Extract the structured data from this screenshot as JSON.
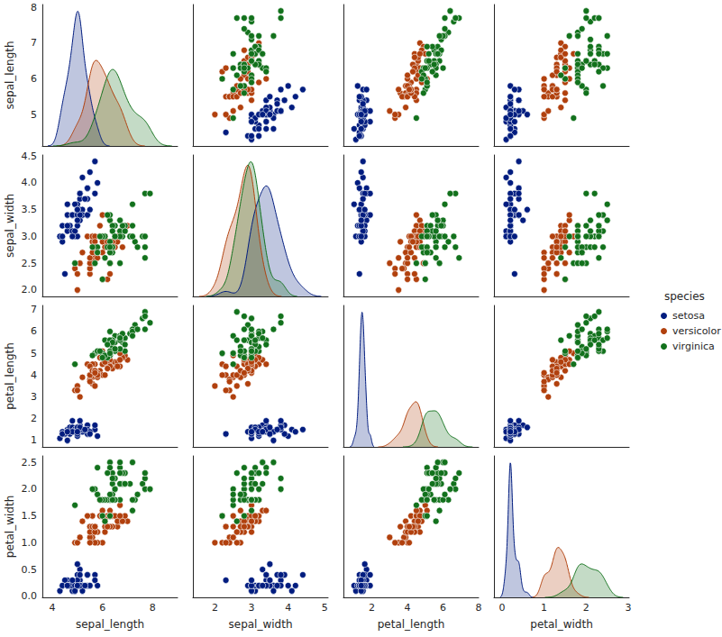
{
  "chart_data": {
    "type": "pairplot",
    "variables": [
      "sepal_length",
      "sepal_width",
      "petal_length",
      "petal_width"
    ],
    "axes": {
      "sepal_length": {
        "xlim": [
          3.6,
          9.0
        ],
        "xticks": [
          4,
          6,
          8
        ],
        "ylim": [
          4.12,
          8.08
        ],
        "yticks": [
          5,
          6,
          7,
          8
        ]
      },
      "sepal_width": {
        "xlim": [
          1.4,
          5.09
        ],
        "xticks": [
          2,
          3,
          4,
          5
        ],
        "ylim": [
          1.88,
          4.52
        ],
        "yticks": [
          {
            "value": 2,
            "label": "2.0"
          },
          2.5,
          {
            "value": 3,
            "label": "3.0"
          },
          3.5,
          {
            "value": 4,
            "label": "4.0"
          },
          4.5
        ]
      },
      "petal_length": {
        "xlim": [
          0.4,
          8.0
        ],
        "xticks": [
          2,
          4,
          6,
          8
        ],
        "ylim": [
          0.705,
          7.195
        ],
        "yticks": [
          1,
          2,
          3,
          4,
          5,
          6,
          7
        ]
      },
      "petal_width": {
        "xlim": [
          -0.19,
          3.02
        ],
        "xticks": [
          0,
          1,
          2,
          3
        ],
        "ylim": [
          -0.02,
          2.62
        ],
        "yticks": [
          {
            "value": 0,
            "label": "0.0"
          },
          0.5,
          {
            "value": 1,
            "label": "1.0"
          },
          1.5,
          {
            "value": 2,
            "label": "2.0"
          },
          2.5
        ]
      }
    },
    "legend": "right",
    "legend_title": "species",
    "marker": "circle",
    "grid": false,
    "series": [
      {
        "name": "setosa",
        "color": "#001c7f",
        "values": [
          [
            5.1,
            3.5,
            1.4,
            0.2
          ],
          [
            4.9,
            3.0,
            1.4,
            0.2
          ],
          [
            4.7,
            3.2,
            1.3,
            0.2
          ],
          [
            4.6,
            3.1,
            1.5,
            0.2
          ],
          [
            5.0,
            3.6,
            1.4,
            0.2
          ],
          [
            5.4,
            3.9,
            1.7,
            0.4
          ],
          [
            4.6,
            3.4,
            1.4,
            0.3
          ],
          [
            5.0,
            3.4,
            1.5,
            0.2
          ],
          [
            4.4,
            2.9,
            1.4,
            0.2
          ],
          [
            4.9,
            3.1,
            1.5,
            0.1
          ],
          [
            5.4,
            3.7,
            1.5,
            0.2
          ],
          [
            4.8,
            3.4,
            1.6,
            0.2
          ],
          [
            4.8,
            3.0,
            1.4,
            0.1
          ],
          [
            4.3,
            3.0,
            1.1,
            0.1
          ],
          [
            5.8,
            4.0,
            1.2,
            0.2
          ],
          [
            5.7,
            4.4,
            1.5,
            0.4
          ],
          [
            5.4,
            3.9,
            1.3,
            0.4
          ],
          [
            5.1,
            3.5,
            1.4,
            0.3
          ],
          [
            5.7,
            3.8,
            1.7,
            0.3
          ],
          [
            5.1,
            3.8,
            1.5,
            0.3
          ],
          [
            5.4,
            3.4,
            1.7,
            0.2
          ],
          [
            5.1,
            3.7,
            1.5,
            0.4
          ],
          [
            4.6,
            3.6,
            1.0,
            0.2
          ],
          [
            5.1,
            3.3,
            1.7,
            0.5
          ],
          [
            4.8,
            3.4,
            1.9,
            0.2
          ],
          [
            5.0,
            3.0,
            1.6,
            0.2
          ],
          [
            5.0,
            3.4,
            1.6,
            0.4
          ],
          [
            5.2,
            3.5,
            1.5,
            0.2
          ],
          [
            5.2,
            3.4,
            1.4,
            0.2
          ],
          [
            4.7,
            3.2,
            1.6,
            0.2
          ],
          [
            4.8,
            3.1,
            1.6,
            0.2
          ],
          [
            5.4,
            3.4,
            1.5,
            0.4
          ],
          [
            5.2,
            4.1,
            1.5,
            0.1
          ],
          [
            5.5,
            4.2,
            1.4,
            0.2
          ],
          [
            4.9,
            3.1,
            1.5,
            0.2
          ],
          [
            5.0,
            3.2,
            1.2,
            0.2
          ],
          [
            5.5,
            3.5,
            1.3,
            0.2
          ],
          [
            4.9,
            3.6,
            1.4,
            0.1
          ],
          [
            4.4,
            3.0,
            1.3,
            0.2
          ],
          [
            5.1,
            3.4,
            1.5,
            0.2
          ],
          [
            5.0,
            3.5,
            1.3,
            0.3
          ],
          [
            4.5,
            2.3,
            1.3,
            0.3
          ],
          [
            4.4,
            3.2,
            1.3,
            0.2
          ],
          [
            5.0,
            3.5,
            1.6,
            0.6
          ],
          [
            5.1,
            3.8,
            1.9,
            0.4
          ],
          [
            4.8,
            3.0,
            1.4,
            0.3
          ],
          [
            5.1,
            3.8,
            1.6,
            0.2
          ],
          [
            4.6,
            3.2,
            1.4,
            0.2
          ],
          [
            5.3,
            3.7,
            1.5,
            0.2
          ],
          [
            5.0,
            3.3,
            1.4,
            0.2
          ]
        ]
      },
      {
        "name": "versicolor",
        "color": "#b1400d",
        "values": [
          [
            7.0,
            3.2,
            4.7,
            1.4
          ],
          [
            6.4,
            3.2,
            4.5,
            1.5
          ],
          [
            6.9,
            3.1,
            4.9,
            1.5
          ],
          [
            5.5,
            2.3,
            4.0,
            1.3
          ],
          [
            6.5,
            2.8,
            4.6,
            1.5
          ],
          [
            5.7,
            2.8,
            4.5,
            1.3
          ],
          [
            6.3,
            3.3,
            4.7,
            1.6
          ],
          [
            4.9,
            2.4,
            3.3,
            1.0
          ],
          [
            6.6,
            2.9,
            4.6,
            1.3
          ],
          [
            5.2,
            2.7,
            3.9,
            1.4
          ],
          [
            5.0,
            2.0,
            3.5,
            1.0
          ],
          [
            5.9,
            3.0,
            4.2,
            1.5
          ],
          [
            6.0,
            2.2,
            4.0,
            1.0
          ],
          [
            6.1,
            2.9,
            4.7,
            1.4
          ],
          [
            5.6,
            2.9,
            3.6,
            1.3
          ],
          [
            6.7,
            3.1,
            4.4,
            1.4
          ],
          [
            5.6,
            3.0,
            4.5,
            1.5
          ],
          [
            5.8,
            2.7,
            4.1,
            1.0
          ],
          [
            6.2,
            2.2,
            4.5,
            1.5
          ],
          [
            5.6,
            2.5,
            3.9,
            1.1
          ],
          [
            5.9,
            3.2,
            4.8,
            1.8
          ],
          [
            6.1,
            2.8,
            4.0,
            1.3
          ],
          [
            6.3,
            2.5,
            4.9,
            1.5
          ],
          [
            6.1,
            2.8,
            4.7,
            1.2
          ],
          [
            6.4,
            2.9,
            4.3,
            1.3
          ],
          [
            6.6,
            3.0,
            4.4,
            1.4
          ],
          [
            6.8,
            2.8,
            4.8,
            1.4
          ],
          [
            6.7,
            3.0,
            5.0,
            1.7
          ],
          [
            6.0,
            2.9,
            4.5,
            1.5
          ],
          [
            5.7,
            2.6,
            3.5,
            1.0
          ],
          [
            5.5,
            2.4,
            3.8,
            1.1
          ],
          [
            5.5,
            2.4,
            3.7,
            1.0
          ],
          [
            5.8,
            2.7,
            3.9,
            1.2
          ],
          [
            6.0,
            2.7,
            5.1,
            1.6
          ],
          [
            5.4,
            3.0,
            4.5,
            1.5
          ],
          [
            6.0,
            3.4,
            4.5,
            1.6
          ],
          [
            6.7,
            3.1,
            4.7,
            1.5
          ],
          [
            6.3,
            2.3,
            4.4,
            1.3
          ],
          [
            5.6,
            3.0,
            4.1,
            1.3
          ],
          [
            5.5,
            2.5,
            4.0,
            1.3
          ],
          [
            5.5,
            2.6,
            4.4,
            1.2
          ],
          [
            6.1,
            3.0,
            4.6,
            1.4
          ],
          [
            5.8,
            2.6,
            4.0,
            1.2
          ],
          [
            5.0,
            2.3,
            3.3,
            1.0
          ],
          [
            5.6,
            2.7,
            4.2,
            1.3
          ],
          [
            5.7,
            3.0,
            4.2,
            1.2
          ],
          [
            5.7,
            2.9,
            4.2,
            1.3
          ],
          [
            6.2,
            2.9,
            4.3,
            1.3
          ],
          [
            5.1,
            2.5,
            3.0,
            1.1
          ],
          [
            5.7,
            2.8,
            4.1,
            1.3
          ]
        ]
      },
      {
        "name": "virginica",
        "color": "#12711c",
        "values": [
          [
            6.3,
            3.3,
            6.0,
            2.5
          ],
          [
            5.8,
            2.7,
            5.1,
            1.9
          ],
          [
            7.1,
            3.0,
            5.9,
            2.1
          ],
          [
            6.3,
            2.9,
            5.6,
            1.8
          ],
          [
            6.5,
            3.0,
            5.8,
            2.2
          ],
          [
            7.6,
            3.0,
            6.6,
            2.1
          ],
          [
            4.9,
            2.5,
            4.5,
            1.7
          ],
          [
            7.3,
            2.9,
            6.3,
            1.8
          ],
          [
            6.7,
            2.5,
            5.8,
            1.8
          ],
          [
            7.2,
            3.6,
            6.1,
            2.5
          ],
          [
            6.5,
            3.2,
            5.1,
            2.0
          ],
          [
            6.4,
            2.7,
            5.3,
            1.9
          ],
          [
            6.8,
            3.0,
            5.5,
            2.1
          ],
          [
            5.7,
            2.5,
            5.0,
            2.0
          ],
          [
            5.8,
            2.8,
            5.1,
            2.4
          ],
          [
            6.4,
            3.2,
            5.3,
            2.3
          ],
          [
            6.5,
            3.0,
            5.5,
            1.8
          ],
          [
            7.7,
            3.8,
            6.7,
            2.2
          ],
          [
            7.7,
            2.6,
            6.9,
            2.3
          ],
          [
            6.0,
            2.2,
            5.0,
            1.5
          ],
          [
            6.9,
            3.2,
            5.7,
            2.3
          ],
          [
            5.6,
            2.8,
            4.9,
            2.0
          ],
          [
            7.7,
            2.8,
            6.7,
            2.0
          ],
          [
            6.3,
            2.7,
            4.9,
            1.8
          ],
          [
            6.7,
            3.3,
            5.7,
            2.1
          ],
          [
            7.2,
            3.2,
            6.0,
            1.8
          ],
          [
            6.2,
            2.8,
            4.8,
            1.8
          ],
          [
            6.1,
            3.0,
            4.9,
            1.8
          ],
          [
            6.4,
            2.8,
            5.6,
            2.1
          ],
          [
            7.2,
            3.0,
            5.8,
            1.6
          ],
          [
            7.4,
            2.8,
            6.1,
            1.9
          ],
          [
            7.9,
            3.8,
            6.4,
            2.0
          ],
          [
            6.4,
            2.8,
            5.6,
            2.2
          ],
          [
            6.3,
            2.8,
            5.1,
            1.5
          ],
          [
            6.1,
            2.6,
            5.6,
            1.4
          ],
          [
            7.7,
            3.0,
            6.1,
            2.3
          ],
          [
            6.3,
            3.4,
            5.6,
            2.4
          ],
          [
            6.4,
            3.1,
            5.5,
            1.8
          ],
          [
            6.0,
            3.0,
            4.8,
            1.8
          ],
          [
            6.9,
            3.1,
            5.4,
            2.1
          ],
          [
            6.7,
            3.1,
            5.6,
            2.4
          ],
          [
            6.9,
            3.1,
            5.1,
            2.3
          ],
          [
            5.8,
            2.7,
            5.1,
            1.9
          ],
          [
            6.8,
            3.2,
            5.9,
            2.3
          ],
          [
            6.7,
            3.3,
            5.7,
            2.5
          ],
          [
            6.7,
            3.0,
            5.2,
            2.3
          ],
          [
            6.3,
            2.5,
            5.0,
            1.9
          ],
          [
            6.5,
            3.0,
            5.2,
            2.0
          ],
          [
            6.2,
            3.4,
            5.4,
            2.3
          ],
          [
            5.9,
            3.0,
            5.1,
            1.8
          ]
        ]
      }
    ]
  }
}
